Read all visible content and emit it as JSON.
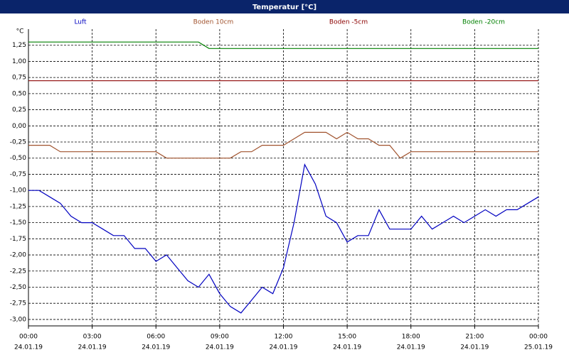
{
  "chart_data": {
    "type": "line",
    "title": "Temperatur [°C]",
    "y_unit": "°C",
    "grid": true,
    "xlim": [
      0,
      24
    ],
    "ylim": [
      -3.1,
      1.5
    ],
    "xticks": [
      {
        "value": 0,
        "label": "00:00"
      },
      {
        "value": 3,
        "label": "03:00"
      },
      {
        "value": 6,
        "label": "06:00"
      },
      {
        "value": 9,
        "label": "09:00"
      },
      {
        "value": 12,
        "label": "12:00"
      },
      {
        "value": 15,
        "label": "15:00"
      },
      {
        "value": 18,
        "label": "18:00"
      },
      {
        "value": 21,
        "label": "21:00"
      },
      {
        "value": 24,
        "label": "00:00"
      }
    ],
    "xtick_dates": [
      "24.01.19",
      "24.01.19",
      "24.01.19",
      "24.01.19",
      "24.01.19",
      "24.01.19",
      "24.01.19",
      "24.01.19",
      "25.01.19"
    ],
    "yticks": [
      {
        "value": 1.25,
        "label": "1,25"
      },
      {
        "value": 1,
        "label": "1,00"
      },
      {
        "value": 0.75,
        "label": "0,75"
      },
      {
        "value": 0.5,
        "label": "0,50"
      },
      {
        "value": 0.25,
        "label": "0,25"
      },
      {
        "value": 0,
        "label": "0,00"
      },
      {
        "value": -0.25,
        "label": "-0,25"
      },
      {
        "value": -0.5,
        "label": "-0,50"
      },
      {
        "value": -0.75,
        "label": "-0,75"
      },
      {
        "value": -1,
        "label": "-1,00"
      },
      {
        "value": -1.25,
        "label": "-1,25"
      },
      {
        "value": -1.5,
        "label": "-1,50"
      },
      {
        "value": -1.75,
        "label": "-1,75"
      },
      {
        "value": -2,
        "label": "-2,00"
      },
      {
        "value": -2.25,
        "label": "-2,25"
      },
      {
        "value": -2.5,
        "label": "-2,50"
      },
      {
        "value": -2.75,
        "label": "-2,75"
      },
      {
        "value": -3,
        "label": "-3,00"
      }
    ],
    "x": [
      0,
      0.5,
      1,
      1.5,
      2,
      2.5,
      3,
      3.5,
      4,
      4.5,
      5,
      5.5,
      6,
      6.5,
      7,
      7.5,
      8,
      8.5,
      9,
      9.5,
      10,
      10.5,
      11,
      11.5,
      12,
      12.5,
      13,
      13.5,
      14,
      14.5,
      15,
      15.5,
      16,
      16.5,
      17,
      17.5,
      18,
      18.5,
      19,
      19.5,
      20,
      20.5,
      21,
      21.5,
      22,
      22.5,
      23,
      23.5,
      24
    ],
    "series": [
      {
        "name": "Luft",
        "color": "#0000c0",
        "values": [
          -1.0,
          -1.0,
          -1.1,
          -1.2,
          -1.4,
          -1.5,
          -1.5,
          -1.6,
          -1.7,
          -1.7,
          -1.9,
          -1.9,
          -2.1,
          -2.0,
          -2.2,
          -2.4,
          -2.5,
          -2.3,
          -2.6,
          -2.8,
          -2.9,
          -2.7,
          -2.5,
          -2.6,
          -2.2,
          -1.5,
          -0.6,
          -0.9,
          -1.4,
          -1.5,
          -1.8,
          -1.7,
          -1.7,
          -1.3,
          -1.6,
          -1.6,
          -1.6,
          -1.4,
          -1.6,
          -1.5,
          -1.4,
          -1.5,
          -1.4,
          -1.3,
          -1.4,
          -1.3,
          -1.3,
          -1.2,
          -1.1
        ]
      },
      {
        "name": "Boden 10cm",
        "color": "#a0522d",
        "values": [
          -0.3,
          -0.3,
          -0.3,
          -0.4,
          -0.4,
          -0.4,
          -0.4,
          -0.4,
          -0.4,
          -0.4,
          -0.4,
          -0.4,
          -0.4,
          -0.5,
          -0.5,
          -0.5,
          -0.5,
          -0.5,
          -0.5,
          -0.5,
          -0.4,
          -0.4,
          -0.3,
          -0.3,
          -0.3,
          -0.2,
          -0.1,
          -0.1,
          -0.1,
          -0.2,
          -0.1,
          -0.2,
          -0.2,
          -0.3,
          -0.3,
          -0.5,
          -0.4,
          -0.4,
          -0.4,
          -0.4,
          -0.4,
          -0.4,
          -0.4,
          -0.4,
          -0.4,
          -0.4,
          -0.4,
          -0.4,
          -0.4
        ]
      },
      {
        "name": "Boden -5cm",
        "color": "#8b0000",
        "values": [
          0.7,
          0.7,
          0.7,
          0.7,
          0.7,
          0.7,
          0.7,
          0.7,
          0.7,
          0.7,
          0.7,
          0.7,
          0.7,
          0.7,
          0.7,
          0.7,
          0.7,
          0.7,
          0.7,
          0.7,
          0.7,
          0.7,
          0.7,
          0.7,
          0.7,
          0.7,
          0.7,
          0.7,
          0.7,
          0.7,
          0.7,
          0.7,
          0.7,
          0.7,
          0.7,
          0.7,
          0.7,
          0.7,
          0.7,
          0.7,
          0.7,
          0.7,
          0.7,
          0.7,
          0.7,
          0.7,
          0.7,
          0.7,
          0.7
        ]
      },
      {
        "name": "Boden -20cm",
        "color": "#008000",
        "values": [
          1.3,
          1.3,
          1.3,
          1.3,
          1.3,
          1.3,
          1.3,
          1.3,
          1.3,
          1.3,
          1.3,
          1.3,
          1.3,
          1.3,
          1.3,
          1.3,
          1.3,
          1.2,
          1.2,
          1.2,
          1.2,
          1.2,
          1.2,
          1.2,
          1.2,
          1.2,
          1.2,
          1.2,
          1.2,
          1.2,
          1.2,
          1.2,
          1.2,
          1.2,
          1.2,
          1.2,
          1.2,
          1.2,
          1.2,
          1.2,
          1.2,
          1.2,
          1.2,
          1.2,
          1.2,
          1.2,
          1.2,
          1.2,
          1.2
        ]
      }
    ]
  }
}
